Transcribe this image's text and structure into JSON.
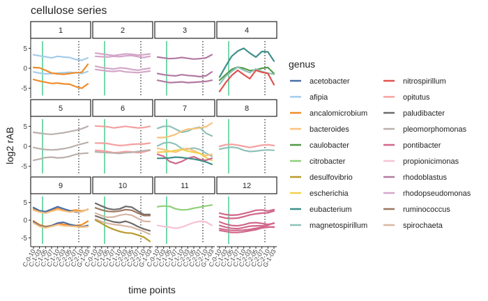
{
  "chart_data": {
    "type": "line",
    "title": "cellulose series",
    "xlabel": "time points",
    "ylabel": "log2 rAB",
    "legend_title": "genus",
    "legend_position": "right",
    "grid": false,
    "ylim": [
      -7.5,
      7.5
    ],
    "yticks": [
      -5,
      0,
      5
    ],
    "x_categories": [
      "C-0-10",
      "C-1-03",
      "C-1-05",
      "C-1-07",
      "C-1-10",
      "C-2-03",
      "C-2-05",
      "C-2-07",
      "C-2-10",
      "G-1-03"
    ],
    "green_vline_x": 1.5,
    "dotted_vline_x": 7.5,
    "legend": [
      {
        "genus": "acetobacter",
        "color": "#4a6fa5"
      },
      {
        "genus": "afipia",
        "color": "#a3cce9"
      },
      {
        "genus": "ancalomicrobium",
        "color": "#f08c2a"
      },
      {
        "genus": "bacteroides",
        "color": "#f9c27e"
      },
      {
        "genus": "caulobacter",
        "color": "#4f9a47"
      },
      {
        "genus": "citrobacter",
        "color": "#8fcf7a"
      },
      {
        "genus": "desulfovibrio",
        "color": "#b89a2c"
      },
      {
        "genus": "escherichia",
        "color": "#f0d050"
      },
      {
        "genus": "eubacterium",
        "color": "#3f8f8a"
      },
      {
        "genus": "magnetospirillum",
        "color": "#8fc1b9"
      },
      {
        "genus": "nitrospirillum",
        "color": "#e0524f"
      },
      {
        "genus": "opitutus",
        "color": "#f4a0a0"
      },
      {
        "genus": "paludibacter",
        "color": "#6e6a6a"
      },
      {
        "genus": "pleomorphomonas",
        "color": "#bab0ac"
      },
      {
        "genus": "pontibacter",
        "color": "#d0678b"
      },
      {
        "genus": "propionicimonas",
        "color": "#f5c2d6"
      },
      {
        "genus": "rhodoblastus",
        "color": "#b27aa1"
      },
      {
        "genus": "rhodopseudomonas",
        "color": "#d4a6c8"
      },
      {
        "genus": "ruminococcus",
        "color": "#9d7660"
      },
      {
        "genus": "spirochaeta",
        "color": "#d8b5a5"
      }
    ],
    "panels": [
      {
        "label": "1",
        "series": [
          {
            "genus": "afipia",
            "values": [
              3.4,
              3.1,
              2.9,
              2.6,
              3.0,
              2.8,
              2.7,
              2.2,
              2.0,
              2.6
            ]
          },
          {
            "genus": "afipia",
            "values": [
              -0.9,
              -1.2,
              -1.4,
              -1.3,
              -1.2,
              -1.1,
              -1.0,
              -1.1,
              -1.3,
              -0.8
            ]
          },
          {
            "genus": "ancalomicrobium",
            "values": [
              0.2,
              0.1,
              -0.5,
              -1.2,
              -1.4,
              -1.5,
              -1.3,
              -1.1,
              -1.0,
              1.0
            ]
          },
          {
            "genus": "ancalomicrobium",
            "values": [
              -2.8,
              -3.2,
              -3.5,
              -3.8,
              -3.7,
              -3.9,
              -4.0,
              -4.6,
              -5.0,
              -3.9
            ]
          }
        ]
      },
      {
        "label": "2",
        "series": [
          {
            "genus": "rhodopseudomonas",
            "values": [
              3.8,
              3.6,
              3.4,
              3.2,
              3.4,
              3.6,
              3.5,
              3.3,
              3.4,
              3.6
            ]
          },
          {
            "genus": "rhodopseudomonas",
            "values": [
              3.0,
              2.9,
              2.8,
              3.0,
              2.9,
              3.1,
              3.2,
              2.9,
              2.7,
              3.0
            ]
          },
          {
            "genus": "rhodopseudomonas",
            "values": [
              0.5,
              0.2,
              0.0,
              -0.2,
              0.1,
              0.0,
              -0.3,
              -0.5,
              -0.2,
              0.0
            ]
          },
          {
            "genus": "rhodopseudomonas",
            "values": [
              -0.3,
              -0.5,
              -0.7,
              -0.8,
              -0.6,
              -0.9,
              -1.0,
              -1.1,
              -0.9,
              -0.7
            ]
          }
        ]
      },
      {
        "label": "3",
        "series": [
          {
            "genus": "rhodoblastus",
            "values": [
              2.8,
              2.6,
              2.4,
              2.5,
              2.7,
              2.5,
              2.3,
              2.4,
              2.6,
              3.4
            ]
          },
          {
            "genus": "rhodoblastus",
            "values": [
              -1.3,
              -1.6,
              -1.8,
              -1.9,
              -1.6,
              -1.8,
              -1.9,
              -2.1,
              -1.9,
              -0.9
            ]
          },
          {
            "genus": "rhodoblastus",
            "values": [
              -3.0,
              -3.3,
              -3.6,
              -3.5,
              -3.4,
              -3.6,
              -3.5,
              -3.4,
              -3.3,
              -3.0
            ]
          }
        ]
      },
      {
        "label": "4",
        "series": [
          {
            "genus": "eubacterium",
            "values": [
              -2.2,
              0.5,
              3.0,
              4.3,
              5.0,
              3.8,
              2.8,
              4.2,
              4.1,
              1.8
            ]
          },
          {
            "genus": "caulobacter",
            "values": [
              -3.0,
              -1.6,
              -0.3,
              0.3,
              0.0,
              -0.6,
              -0.4,
              0.0,
              0.2,
              -1.3
            ]
          },
          {
            "genus": "magnetospirillum",
            "values": [
              -4.0,
              -2.0,
              -0.8,
              0.3,
              -0.5,
              -1.1,
              -0.2,
              -0.8,
              -1.2,
              -1.5
            ]
          },
          {
            "genus": "nitrospirillum",
            "values": [
              -5.8,
              -3.6,
              -1.8,
              -0.5,
              -1.6,
              -2.6,
              -0.5,
              -1.0,
              -1.3,
              -4.1
            ]
          }
        ]
      },
      {
        "label": "5",
        "series": [
          {
            "genus": "pleomorphomonas",
            "values": [
              3.5,
              3.3,
              3.1,
              3.0,
              3.2,
              3.4,
              3.7,
              4.0,
              4.4,
              5.0
            ]
          },
          {
            "genus": "pleomorphomonas",
            "values": [
              -0.3,
              -0.6,
              -0.8,
              -0.9,
              -0.8,
              -0.6,
              -0.3,
              0.2,
              0.6,
              1.0
            ]
          },
          {
            "genus": "pleomorphomonas",
            "values": [
              -3.5,
              -3.2,
              -2.8,
              -2.7,
              -2.9,
              -2.8,
              -2.5,
              -2.0,
              -1.8,
              -1.7
            ]
          }
        ]
      },
      {
        "label": "6",
        "series": [
          {
            "genus": "opitutus",
            "values": [
              5.1,
              5.0,
              4.9,
              4.6,
              4.8,
              5.0,
              4.8,
              4.6,
              4.7,
              5.0
            ]
          },
          {
            "genus": "opitutus",
            "values": [
              0.8,
              0.8,
              0.7,
              0.4,
              0.2,
              0.3,
              0.5,
              0.6,
              0.6,
              0.8
            ]
          },
          {
            "genus": "opitutus",
            "values": [
              -1.0,
              -1.1,
              -1.3,
              -1.6,
              -1.5,
              -1.3,
              -1.4,
              -1.6,
              -1.4,
              -1.0
            ]
          },
          {
            "genus": "pleomorphomonas",
            "values": [
              -1.4,
              -1.5,
              -1.6,
              -1.7,
              -1.8,
              -1.6,
              -1.5,
              -1.3,
              -1.1,
              -0.9
            ]
          }
        ]
      },
      {
        "label": "7",
        "series": [
          {
            "genus": "magnetospirillum",
            "values": [
              4.5,
              5.0,
              5.0,
              4.3,
              3.5,
              3.8,
              4.5,
              4.8,
              3.3,
              2.6
            ]
          },
          {
            "genus": "bacteroides",
            "values": [
              2.2,
              2.2,
              2.5,
              3.0,
              3.8,
              4.3,
              4.4,
              4.6,
              4.9,
              5.8
            ]
          },
          {
            "genus": "magnetospirillum",
            "values": [
              0.1,
              0.8,
              1.0,
              0.5,
              -0.6,
              -0.7,
              -0.4,
              -0.8,
              -1.7,
              -2.5
            ]
          },
          {
            "genus": "bacteroides",
            "values": [
              -0.5,
              -0.8,
              -1.2,
              -1.5,
              -0.8,
              -0.5,
              -1.1,
              -1.8,
              -2.3,
              -2.0
            ]
          },
          {
            "genus": "escherichia",
            "values": [
              -1.5,
              -1.4,
              -1.3,
              -1.0,
              -0.8,
              -1.2,
              -1.5,
              -1.8,
              -2.8,
              -3.5
            ]
          },
          {
            "genus": "pontibacter",
            "values": [
              -2.0,
              -2.5,
              -3.8,
              -4.3,
              -3.8,
              -3.0,
              -2.6,
              -3.3,
              -3.5,
              -3.0
            ]
          },
          {
            "genus": "eubacterium",
            "values": [
              -3.0,
              -3.0,
              -2.9,
              -2.7,
              -2.8,
              -3.0,
              -3.2,
              -3.5,
              -3.9,
              -4.5
            ]
          }
        ]
      },
      {
        "label": "8",
        "series": [
          {
            "genus": "opitutus",
            "values": [
              0.0,
              0.4,
              0.5,
              0.3,
              0.0,
              -0.3,
              0.0,
              0.3,
              0.4,
              0.2
            ]
          },
          {
            "genus": "magnetospirillum",
            "values": [
              -0.7,
              -0.4,
              -0.2,
              -0.4,
              -1.0,
              -1.3,
              -1.2,
              -1.0,
              -0.9,
              -1.0
            ]
          }
        ]
      },
      {
        "label": "9",
        "series": [
          {
            "genus": "ancalomicrobium",
            "values": [
              3.2,
              2.5,
              2.4,
              2.9,
              3.3,
              2.7,
              2.6,
              2.9,
              2.6,
              3.0
            ]
          },
          {
            "genus": "acetobacter",
            "values": [
              3.6,
              2.7,
              2.4,
              3.1,
              3.8,
              3.2,
              2.7,
              2.3,
              2.4,
              3.1
            ]
          },
          {
            "genus": "bacteroides",
            "values": [
              2.8,
              2.3,
              2.0,
              2.5,
              3.0,
              2.6,
              2.3,
              2.5,
              2.4,
              3.1
            ]
          },
          {
            "genus": "ancalomicrobium",
            "values": [
              -0.2,
              -1.3,
              -1.8,
              -1.5,
              -0.8,
              -1.2,
              -1.3,
              -1.5,
              -1.3,
              -0.3
            ]
          },
          {
            "genus": "acetobacter",
            "values": [
              -0.5,
              -1.6,
              -2.0,
              -1.6,
              -0.8,
              -0.6,
              -1.2,
              -1.6,
              -1.9,
              -1.5
            ]
          },
          {
            "genus": "bacteroides",
            "values": [
              -0.8,
              -1.8,
              -2.2,
              -1.8,
              -1.3,
              -1.6,
              -1.7,
              -1.8,
              -2.0,
              -1.8
            ]
          }
        ]
      },
      {
        "label": "10",
        "series": [
          {
            "genus": "paludibacter",
            "values": [
              4.8,
              4.0,
              3.3,
              3.0,
              3.2,
              3.9,
              3.7,
              2.6,
              1.6,
              1.6
            ]
          },
          {
            "genus": "ruminococcus",
            "values": [
              3.5,
              2.9,
              2.5,
              2.4,
              2.6,
              3.0,
              2.8,
              2.0,
              1.3,
              1.3
            ]
          },
          {
            "genus": "spirochaeta",
            "values": [
              2.0,
              1.3,
              0.8,
              0.9,
              1.4,
              1.7,
              1.4,
              0.5,
              -0.3,
              -0.4
            ]
          },
          {
            "genus": "paludibacter",
            "values": [
              1.2,
              0.6,
              0.0,
              -0.5,
              -0.7,
              -0.3,
              -0.9,
              -1.8,
              -2.5,
              -3.0
            ]
          },
          {
            "genus": "spirochaeta",
            "values": [
              0.3,
              -0.4,
              -0.9,
              -1.2,
              -1.4,
              -1.7,
              -2.0,
              -2.6,
              -3.2,
              -4.0
            ]
          },
          {
            "genus": "desulfovibrio",
            "values": [
              0.0,
              -0.9,
              -1.9,
              -2.6,
              -3.2,
              -3.6,
              -3.7,
              -4.2,
              -4.8,
              -6.0
            ]
          }
        ]
      },
      {
        "label": "11",
        "series": [
          {
            "genus": "citrobacter",
            "values": [
              3.8,
              4.0,
              3.9,
              3.2,
              2.9,
              3.0,
              3.4,
              3.7,
              4.0,
              4.3
            ]
          },
          {
            "genus": "propionicimonas",
            "values": [
              -1.5,
              -1.8,
              -2.0,
              -2.3,
              -2.0,
              -1.3,
              -0.7,
              -0.3,
              -0.5,
              -1.5
            ]
          }
        ]
      },
      {
        "label": "12",
        "series": [
          {
            "genus": "pontibacter",
            "values": [
              2.0,
              1.6,
              1.4,
              1.5,
              1.9,
              2.3,
              2.8,
              2.9,
              2.6,
              3.0
            ]
          },
          {
            "genus": "pontibacter",
            "values": [
              1.0,
              0.6,
              0.5,
              0.6,
              1.0,
              1.5,
              1.8,
              2.0,
              2.1,
              2.6
            ]
          },
          {
            "genus": "pontibacter",
            "values": [
              -0.5,
              -1.1,
              -1.5,
              -1.6,
              -1.3,
              -0.8,
              -0.7,
              -0.9,
              -1.2,
              -0.9
            ]
          },
          {
            "genus": "pontibacter",
            "values": [
              -1.5,
              -2.0,
              -2.3,
              -2.4,
              -2.1,
              -1.7,
              -1.6,
              -1.6,
              -1.4,
              -0.8
            ]
          },
          {
            "genus": "pontibacter",
            "values": [
              -2.4,
              -2.7,
              -2.9,
              -2.9,
              -2.8,
              -2.6,
              -2.3,
              -2.0,
              -1.9,
              -2.0
            ]
          },
          {
            "genus": "pontibacter",
            "values": [
              -2.9,
              -3.2,
              -3.5,
              -3.5,
              -3.3,
              -3.0,
              -2.7,
              -2.2,
              -2.0,
              -1.9
            ]
          }
        ]
      }
    ]
  }
}
